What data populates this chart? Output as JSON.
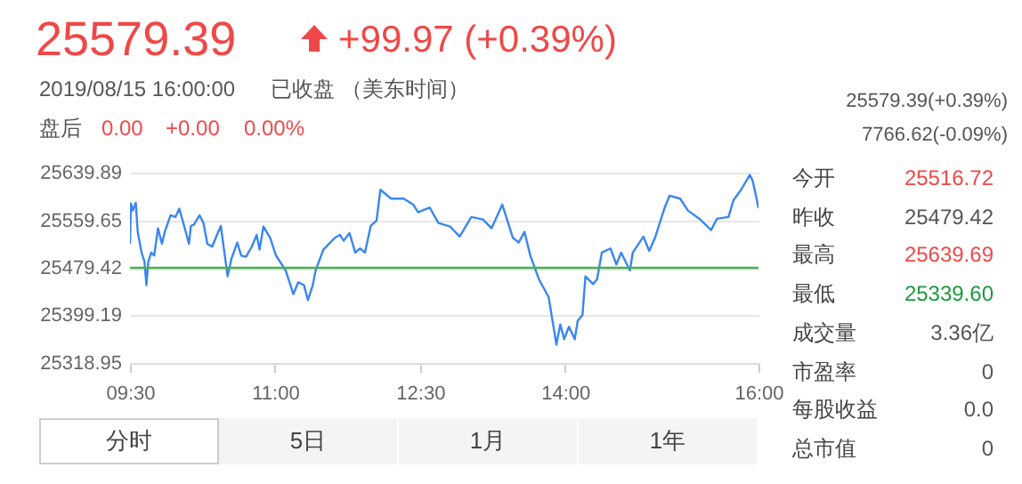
{
  "chart_data": {
    "type": "line",
    "annotations": [
      "25579.39",
      "+99.97 (+0.39%)",
      "2019/08/15 16:00:00",
      "已收盘 （美东时间）",
      "盘后",
      "0.00",
      "+0.00",
      "0.00%",
      "25579.39(+0.39%)",
      "7766.62(-0.09%)",
      "今开",
      "25516.72",
      "昨收",
      "25479.42",
      "最高",
      "25639.69",
      "最低",
      "25339.60",
      "成交量",
      "3.36亿",
      "市盈率",
      "0",
      "每股收益",
      "0.0",
      "总市值",
      "0",
      "分时",
      "5日",
      "1月",
      "1年"
    ],
    "x": [
      9.5,
      9.51,
      9.53,
      9.56,
      9.58,
      9.62,
      9.65,
      9.67,
      9.69,
      9.72,
      9.75,
      9.79,
      9.83,
      9.86,
      9.92,
      9.97,
      10.01,
      10.06,
      10.11,
      10.13,
      10.16,
      10.22,
      10.26,
      10.3,
      10.35,
      10.4,
      10.44,
      10.46,
      10.51,
      10.55,
      10.61,
      10.65,
      10.7,
      10.76,
      10.81,
      10.84,
      10.88,
      10.95,
      11.01,
      11.07,
      11.11,
      11.16,
      11.19,
      11.24,
      11.3,
      11.34,
      11.39,
      11.42,
      11.5,
      11.56,
      11.62,
      11.67,
      11.71,
      11.77,
      11.83,
      11.88,
      11.93,
      11.99,
      12.05,
      12.09,
      12.2,
      12.33,
      12.43,
      12.48,
      12.54,
      12.6,
      12.69,
      12.81,
      12.91,
      13.03,
      13.15,
      13.24,
      13.35,
      13.46,
      13.52,
      13.58,
      13.64,
      13.73,
      13.83,
      13.91,
      13.95,
      13.99,
      14.04,
      14.1,
      14.13,
      14.18,
      14.21,
      14.29,
      14.33,
      14.38,
      14.47,
      14.53,
      14.58,
      14.67,
      14.7,
      14.81,
      14.87,
      14.93,
      15.03,
      15.08,
      15.19,
      15.27,
      15.39,
      15.51,
      15.57,
      15.69,
      15.74,
      15.82,
      15.91,
      15.94,
      15.98,
      16.0
    ],
    "series": [
      {
        "color": "#3a86f0",
        "values": [
          25520,
          25588,
          25576,
          25589,
          25540,
          25505,
          25490,
          25450,
          25490,
          25505,
          25500,
          25546,
          25520,
          25540,
          25568,
          25565,
          25579,
          25550,
          25520,
          25550,
          25552,
          25568,
          25555,
          25520,
          25515,
          25535,
          25550,
          25525,
          25465,
          25495,
          25522,
          25500,
          25498,
          25515,
          25535,
          25510,
          25549,
          25530,
          25500,
          25485,
          25475,
          25450,
          25435,
          25455,
          25450,
          25425,
          25450,
          25475,
          25510,
          25520,
          25530,
          25535,
          25525,
          25538,
          25505,
          25512,
          25505,
          25550,
          25559,
          25611,
          25596,
          25596,
          25586,
          25573,
          25577,
          25581,
          25555,
          25549,
          25532,
          25565,
          25561,
          25546,
          25586,
          25530,
          25522,
          25540,
          25500,
          25460,
          25430,
          25350,
          25384,
          25359,
          25380,
          25359,
          25390,
          25400,
          25465,
          25452,
          25460,
          25505,
          25512,
          25485,
          25505,
          25475,
          25505,
          25532,
          25508,
          25530,
          25581,
          25601,
          25596,
          25576,
          25562,
          25543,
          25562,
          25565,
          25593,
          25611,
          25636,
          25626,
          25596,
          25580
        ]
      }
    ],
    "xlim": [
      9.5,
      16
    ],
    "xticks": [
      {
        "value": 9.5,
        "label": "09:30"
      },
      {
        "value": 11,
        "label": "11:00"
      },
      {
        "value": 12.5,
        "label": "12:30"
      },
      {
        "value": 14,
        "label": "14:00"
      },
      {
        "value": 16,
        "label": "16:00"
      }
    ],
    "ylim": [
      25318.95,
      25639.89
    ],
    "yticks": [
      25318.95,
      25399.19,
      25479.42,
      25559.65,
      25639.89
    ],
    "ref_lines": [
      {
        "axis": "y",
        "value": 25479.42,
        "color": "#4caf50"
      }
    ],
    "grid": "y"
  }
}
